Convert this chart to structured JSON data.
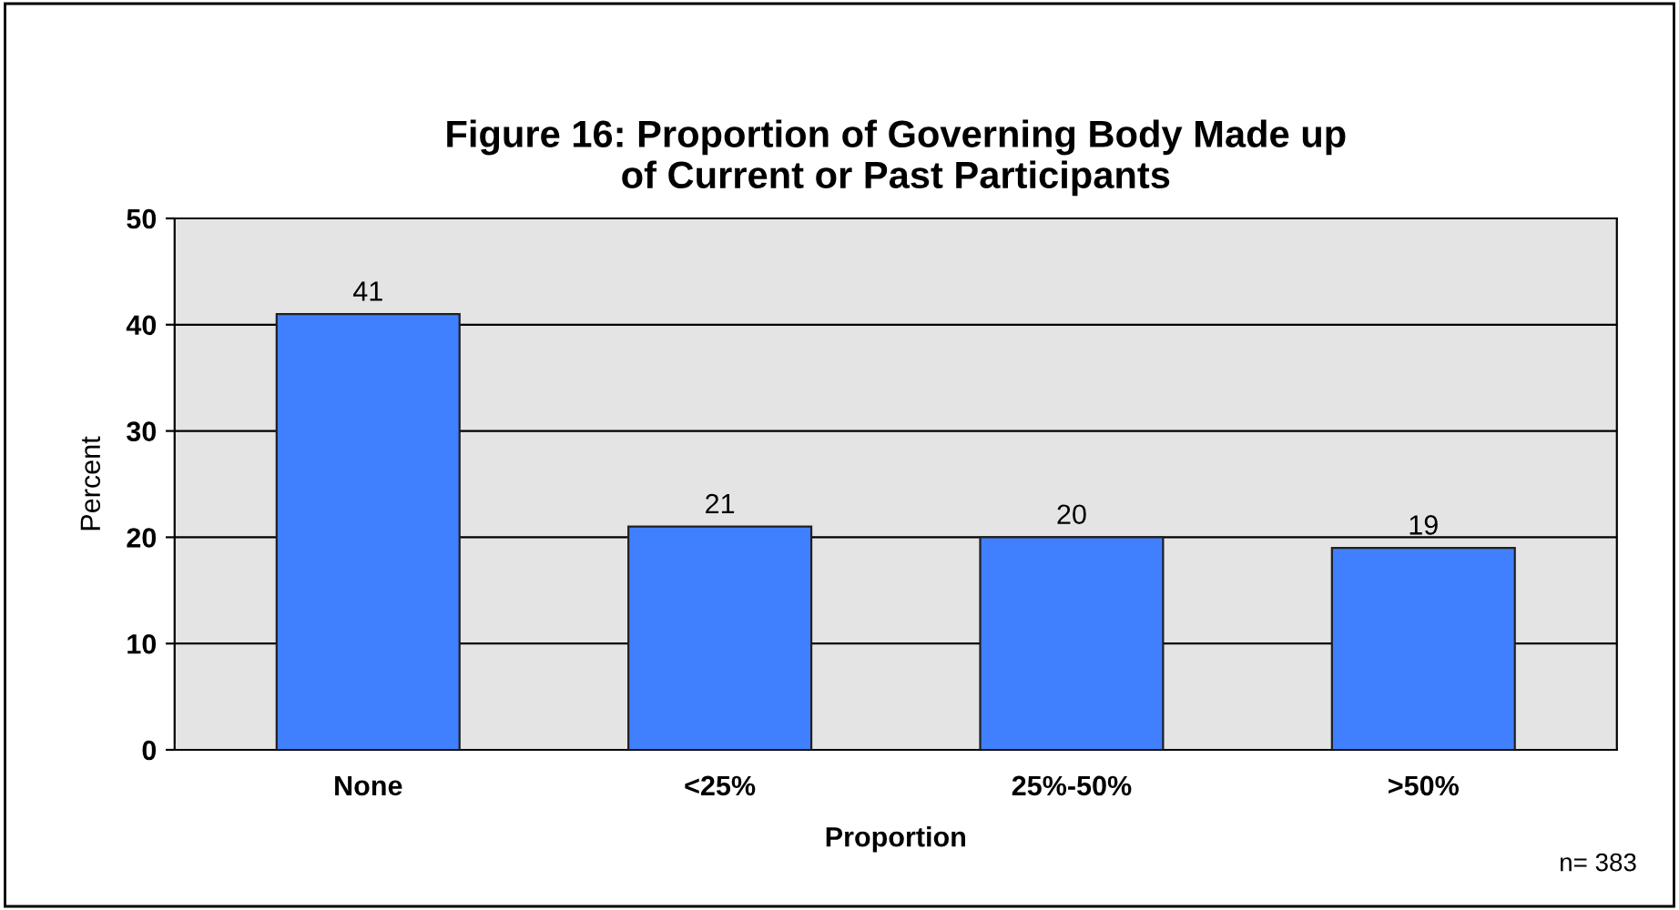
{
  "chart_data": {
    "type": "bar",
    "title": "Figure 16: Proportion of Governing Body Made up\nof Current or Past Participants",
    "xlabel": "Proportion",
    "ylabel": "Percent",
    "categories": [
      "None",
      "<25%",
      "25%-50%",
      ">50%"
    ],
    "values": [
      41,
      21,
      20,
      19
    ],
    "color": "#4080ff",
    "ylim": [
      0,
      50
    ],
    "yticks": [
      0,
      10,
      20,
      30,
      40,
      50
    ],
    "grid": "y",
    "data_labels": true,
    "legend": false,
    "annotations": [
      "n= 383"
    ]
  }
}
